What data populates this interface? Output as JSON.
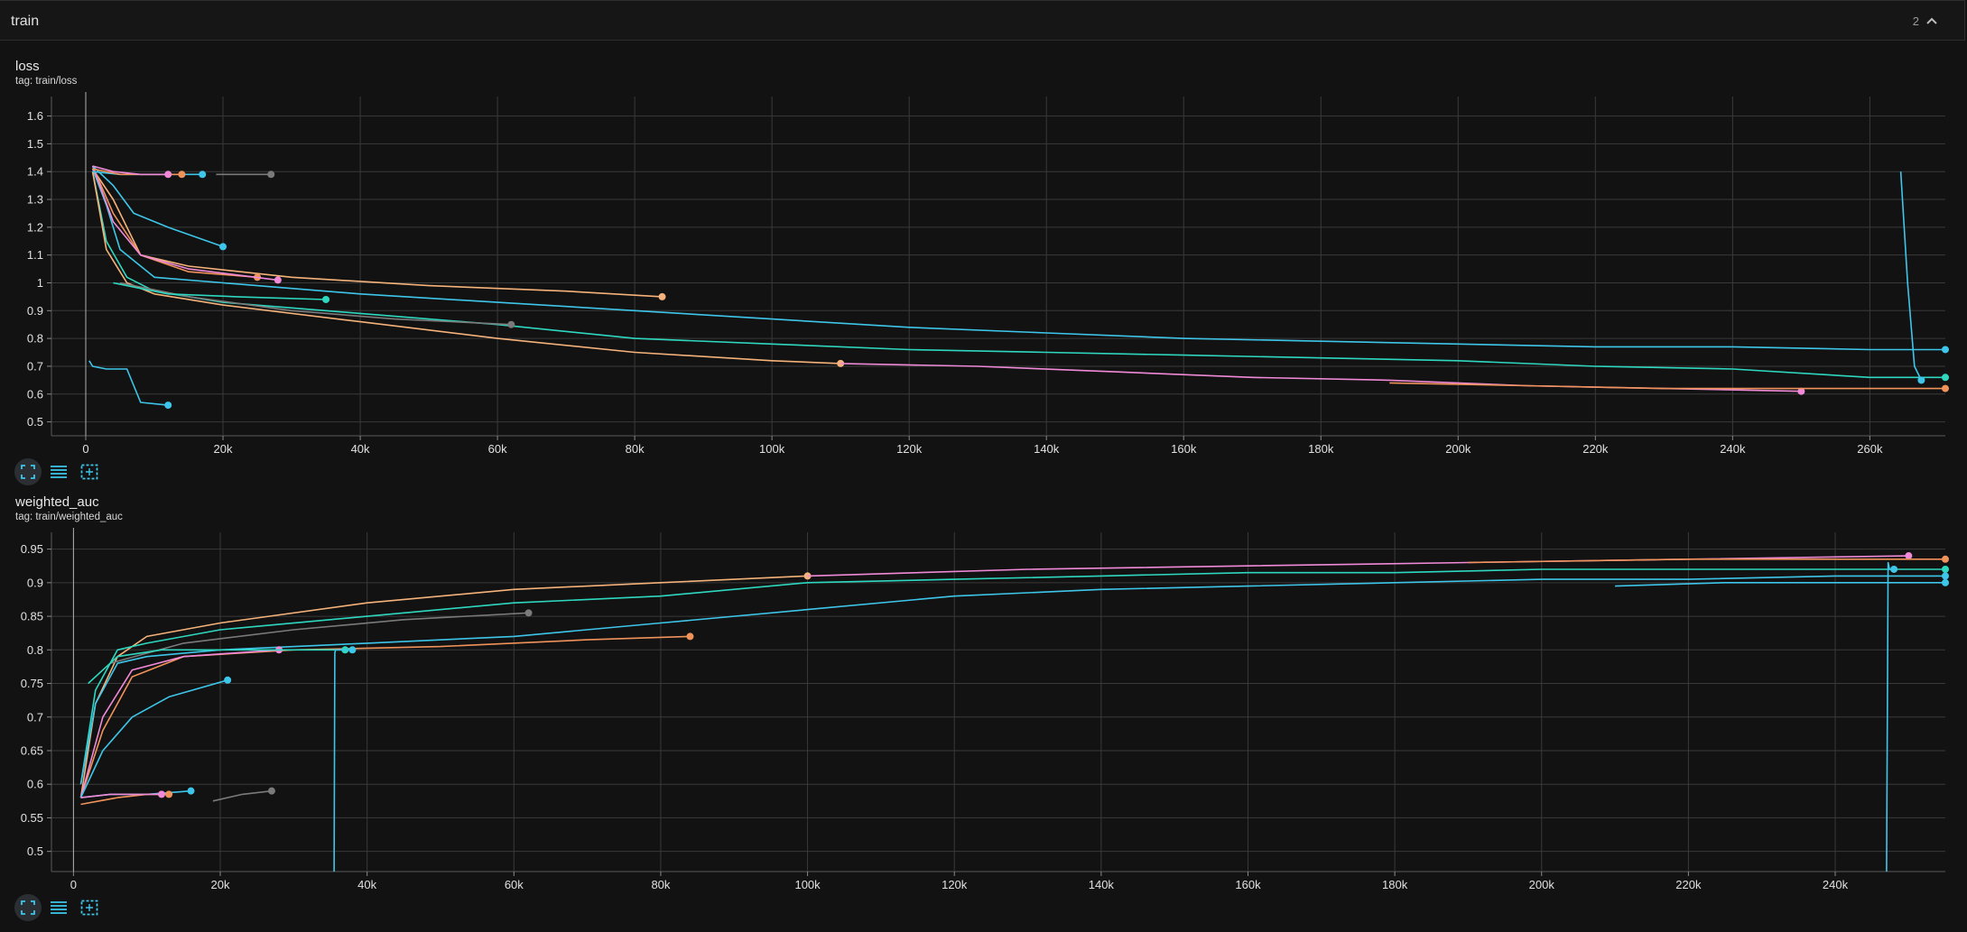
{
  "group": {
    "title": "train",
    "count": "2"
  },
  "icons": {
    "collapse": "chevron-up-icon",
    "fullscreen": "fullscreen-icon",
    "log_scale": "lines-icon",
    "fit_domain": "fit-domain-icon"
  },
  "colors": {
    "cyan": "#3ec6ea",
    "teal": "#2ed8c0",
    "orange": "#f0935a",
    "peach": "#f5b27a",
    "pink": "#f08ad8",
    "gray": "#7a7a7a",
    "grid": "#3a3a3a"
  },
  "cards": [
    {
      "title": "loss",
      "tag": "tag: train/loss",
      "chart_data": {
        "type": "line",
        "xlim": [
          -5000,
          271000
        ],
        "ylim": [
          0.45,
          1.67
        ],
        "xticks": [
          0,
          20000,
          40000,
          60000,
          80000,
          100000,
          120000,
          140000,
          160000,
          180000,
          200000,
          220000,
          240000,
          260000
        ],
        "xtick_labels": [
          "0",
          "20k",
          "40k",
          "60k",
          "80k",
          "100k",
          "120k",
          "140k",
          "160k",
          "180k",
          "200k",
          "220k",
          "240k",
          "260k"
        ],
        "yticks": [
          0.5,
          0.6,
          0.7,
          0.8,
          0.9,
          1.0,
          1.1,
          1.2,
          1.3,
          1.4,
          1.5,
          1.6
        ],
        "ytick_labels": [
          "0.5",
          "0.6",
          "0.7",
          "0.8",
          "0.9",
          "1",
          "1.1",
          "1.2",
          "1.3",
          "1.4",
          "1.5",
          "1.6"
        ],
        "grid": true,
        "series": [
          {
            "color": "cyan",
            "x": [
              1000,
              3000,
              5000,
              10000,
              20000,
              40000,
              60000,
              80000,
              100000,
              120000,
              140000,
              160000,
              180000,
              200000,
              220000,
              240000,
              260000,
              271000
            ],
            "y": [
              1.41,
              1.28,
              1.12,
              1.02,
              1.0,
              0.96,
              0.93,
              0.9,
              0.87,
              0.84,
              0.82,
              0.8,
              0.79,
              0.78,
              0.77,
              0.77,
              0.76,
              0.76
            ]
          },
          {
            "color": "teal",
            "x": [
              1000,
              3000,
              6000,
              10000,
              20000,
              40000,
              60000,
              80000,
              100000,
              120000,
              140000,
              160000,
              180000,
              200000,
              220000,
              240000,
              260000,
              271000
            ],
            "y": [
              1.4,
              1.15,
              1.02,
              0.97,
              0.93,
              0.89,
              0.85,
              0.8,
              0.78,
              0.76,
              0.75,
              0.74,
              0.73,
              0.72,
              0.7,
              0.69,
              0.66,
              0.66
            ]
          },
          {
            "color": "peach",
            "x": [
              1000,
              3000,
              6000,
              10000,
              20000,
              40000,
              60000,
              80000,
              100000,
              110000
            ],
            "y": [
              1.4,
              1.12,
              1.0,
              0.96,
              0.92,
              0.86,
              0.8,
              0.75,
              0.72,
              0.71
            ]
          },
          {
            "color": "pink",
            "x": [
              110000,
              130000,
              150000,
              170000,
              190000,
              210000,
              230000,
              250000
            ],
            "y": [
              0.71,
              0.7,
              0.68,
              0.66,
              0.65,
              0.63,
              0.62,
              0.61
            ]
          },
          {
            "color": "orange",
            "x": [
              190000,
              210000,
              230000,
              250000,
              271000
            ],
            "y": [
              0.64,
              0.63,
              0.62,
              0.62,
              0.62
            ]
          },
          {
            "color": "peach",
            "x": [
              1000,
              4000,
              8000,
              15000,
              30000,
              50000,
              70000,
              84000
            ],
            "y": [
              1.41,
              1.3,
              1.1,
              1.06,
              1.02,
              0.99,
              0.97,
              0.95
            ]
          },
          {
            "color": "orange",
            "x": [
              1000,
              4000,
              8000,
              15000,
              25000
            ],
            "y": [
              1.42,
              1.25,
              1.1,
              1.04,
              1.02
            ]
          },
          {
            "color": "pink",
            "x": [
              1000,
              4000,
              8000,
              15000,
              28000
            ],
            "y": [
              1.42,
              1.22,
              1.1,
              1.05,
              1.01
            ]
          },
          {
            "color": "cyan",
            "x": [
              1000,
              4000,
              7000,
              12000,
              20000
            ],
            "y": [
              1.42,
              1.35,
              1.25,
              1.2,
              1.13
            ]
          },
          {
            "color": "gray",
            "x": [
              5000,
              15000,
              30000,
              45000,
              62000
            ],
            "y": [
              1.0,
              0.95,
              0.9,
              0.87,
              0.85
            ]
          },
          {
            "color": "cyan",
            "x": [
              1000,
              5000,
              10000,
              17000
            ],
            "y": [
              1.4,
              1.39,
              1.39,
              1.39
            ]
          },
          {
            "color": "orange",
            "x": [
              1000,
              5000,
              10000,
              14000
            ],
            "y": [
              1.41,
              1.39,
              1.39,
              1.39
            ]
          },
          {
            "color": "pink",
            "x": [
              1000,
              4000,
              8000,
              12000
            ],
            "y": [
              1.42,
              1.4,
              1.39,
              1.39
            ]
          },
          {
            "color": "gray",
            "x": [
              19000,
              22000,
              27000
            ],
            "y": [
              1.39,
              1.39,
              1.39
            ]
          },
          {
            "color": "teal",
            "x": [
              4000,
              8000,
              12000,
              22000,
              35000
            ],
            "y": [
              1.0,
              0.98,
              0.96,
              0.95,
              0.94
            ]
          },
          {
            "color": "cyan",
            "x": [
              500,
              1000,
              3000,
              6000,
              8000,
              12000
            ],
            "y": [
              0.72,
              0.7,
              0.69,
              0.69,
              0.57,
              0.56
            ]
          },
          {
            "color": "cyan",
            "x": [
              264500,
              265500,
              266500,
              267500
            ],
            "y": [
              1.4,
              1.0,
              0.7,
              0.65
            ]
          }
        ]
      }
    },
    {
      "title": "weighted_auc",
      "tag": "tag: train/weighted_auc",
      "chart_data": {
        "type": "line",
        "xlim": [
          -3000,
          255000
        ],
        "ylim": [
          0.47,
          0.975
        ],
        "xticks": [
          0,
          20000,
          40000,
          60000,
          80000,
          100000,
          120000,
          140000,
          160000,
          180000,
          200000,
          220000,
          240000
        ],
        "xtick_labels": [
          "0",
          "20k",
          "40k",
          "60k",
          "80k",
          "100k",
          "120k",
          "140k",
          "160k",
          "180k",
          "200k",
          "220k",
          "240k"
        ],
        "yticks": [
          0.5,
          0.55,
          0.6,
          0.65,
          0.7,
          0.75,
          0.8,
          0.85,
          0.9,
          0.95
        ],
        "ytick_labels": [
          "0.5",
          "0.55",
          "0.6",
          "0.65",
          "0.7",
          "0.75",
          "0.8",
          "0.85",
          "0.9",
          "0.95"
        ],
        "grid": true,
        "series": [
          {
            "color": "peach",
            "x": [
              1000,
              3000,
              6000,
              10000,
              20000,
              40000,
              60000,
              80000,
              100000
            ],
            "y": [
              0.58,
              0.72,
              0.79,
              0.82,
              0.84,
              0.87,
              0.89,
              0.9,
              0.91
            ]
          },
          {
            "color": "pink",
            "x": [
              100000,
              130000,
              160000,
              190000,
              220000,
              250000
            ],
            "y": [
              0.91,
              0.92,
              0.925,
              0.93,
              0.935,
              0.94
            ]
          },
          {
            "color": "orange",
            "x": [
              190000,
              220000,
              240000,
              255000
            ],
            "y": [
              0.93,
              0.935,
              0.935,
              0.935
            ]
          },
          {
            "color": "teal",
            "x": [
              1000,
              3000,
              6000,
              10000,
              20000,
              40000,
              60000,
              80000,
              100000,
              120000,
              140000,
              160000,
              180000,
              200000,
              220000,
              240000,
              255000
            ],
            "y": [
              0.6,
              0.74,
              0.8,
              0.81,
              0.83,
              0.85,
              0.87,
              0.88,
              0.9,
              0.905,
              0.91,
              0.915,
              0.915,
              0.92,
              0.92,
              0.92,
              0.92
            ]
          },
          {
            "color": "cyan",
            "x": [
              1000,
              3000,
              6000,
              10000,
              20000,
              40000,
              60000,
              80000,
              100000,
              120000,
              140000,
              160000,
              180000,
              200000,
              220000,
              240000,
              255000
            ],
            "y": [
              0.6,
              0.72,
              0.78,
              0.79,
              0.8,
              0.81,
              0.82,
              0.84,
              0.86,
              0.88,
              0.89,
              0.895,
              0.9,
              0.905,
              0.905,
              0.91,
              0.91
            ]
          },
          {
            "color": "cyan",
            "x": [
              210000,
              225000,
              240000,
              255000
            ],
            "y": [
              0.895,
              0.9,
              0.9,
              0.9
            ]
          },
          {
            "color": "orange",
            "x": [
              1000,
              4000,
              8000,
              15000,
              30000,
              50000,
              70000,
              84000
            ],
            "y": [
              0.58,
              0.68,
              0.76,
              0.79,
              0.8,
              0.805,
              0.815,
              0.82
            ]
          },
          {
            "color": "gray",
            "x": [
              5000,
              15000,
              30000,
              45000,
              62000
            ],
            "y": [
              0.78,
              0.81,
              0.83,
              0.845,
              0.855
            ]
          },
          {
            "color": "pink",
            "x": [
              1000,
              4000,
              8000,
              15000,
              28000
            ],
            "y": [
              0.58,
              0.7,
              0.77,
              0.79,
              0.8
            ]
          },
          {
            "color": "cyan",
            "x": [
              1000,
              4000,
              8000,
              13000,
              21000
            ],
            "y": [
              0.58,
              0.65,
              0.7,
              0.73,
              0.755
            ]
          },
          {
            "color": "teal",
            "x": [
              2000,
              6000,
              12000,
              25000,
              37000
            ],
            "y": [
              0.75,
              0.79,
              0.8,
              0.8,
              0.8
            ]
          },
          {
            "color": "cyan",
            "x": [
              1000,
              5000,
              10000,
              16000
            ],
            "y": [
              0.58,
              0.585,
              0.585,
              0.59
            ]
          },
          {
            "color": "orange",
            "x": [
              1000,
              6000,
              10000,
              13000
            ],
            "y": [
              0.57,
              0.58,
              0.585,
              0.585
            ]
          },
          {
            "color": "pink",
            "x": [
              1000,
              5000,
              9000,
              12000
            ],
            "y": [
              0.58,
              0.585,
              0.585,
              0.585
            ]
          },
          {
            "color": "gray",
            "x": [
              19000,
              23000,
              27000
            ],
            "y": [
              0.575,
              0.585,
              0.59
            ]
          },
          {
            "color": "cyan",
            "x": [
              35500,
              35600,
              35700,
              38000
            ],
            "y": [
              0.47,
              0.795,
              0.8,
              0.8
            ]
          },
          {
            "color": "cyan",
            "x": [
              247000,
              247200,
              247400,
              248000
            ],
            "y": [
              0.47,
              0.93,
              0.92,
              0.92
            ]
          }
        ]
      }
    }
  ]
}
